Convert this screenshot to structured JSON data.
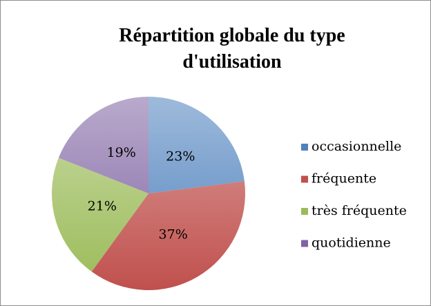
{
  "chart_data": {
    "type": "pie",
    "title": "Répartition globale du type d'utilisation",
    "categories": [
      "occasionnelle",
      "fréquente",
      "très fréquente",
      "quotidienne"
    ],
    "values": [
      23,
      37,
      21,
      19
    ],
    "value_labels": [
      "23%",
      "37%",
      "21%",
      "19%"
    ],
    "colors": [
      "#4f81bd",
      "#c0504d",
      "#9bbb59",
      "#8064a2"
    ],
    "legend": "right"
  }
}
